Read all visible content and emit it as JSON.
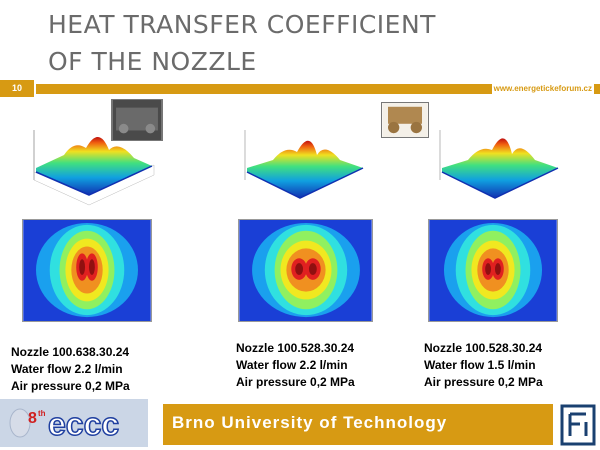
{
  "slide": {
    "title_line1": "HEAT TRANSFER COEFFICIENT",
    "title_line2": "OF THE NOZZLE",
    "number": "10",
    "url": "www.energetickeforum.cz"
  },
  "panels": [
    {
      "caption_line1": "Nozzle 100.638.30.24",
      "caption_line2": "Water flow 2.2 l/min",
      "caption_line3": "Air pressure 0,2 MPa"
    },
    {
      "caption_line1": "Nozzle 100.528.30.24",
      "caption_line2": "Water flow 2.2 l/min",
      "caption_line3": "Air pressure 0,2 MPa"
    },
    {
      "caption_line1": "Nozzle 100.528.30.24",
      "caption_line2": "Water flow 1.5 l/min",
      "caption_line3": "Air pressure 0,2 MPa"
    }
  ],
  "footer": {
    "institution": "Brno University of Technology",
    "logo_text": "eccc",
    "logo_superscript": "th",
    "logo_number": "8"
  },
  "colors": {
    "accent": "#d79a13",
    "title": "#6b6b6b"
  },
  "icons": {
    "fsi_logo": "fsi-logo-icon"
  }
}
